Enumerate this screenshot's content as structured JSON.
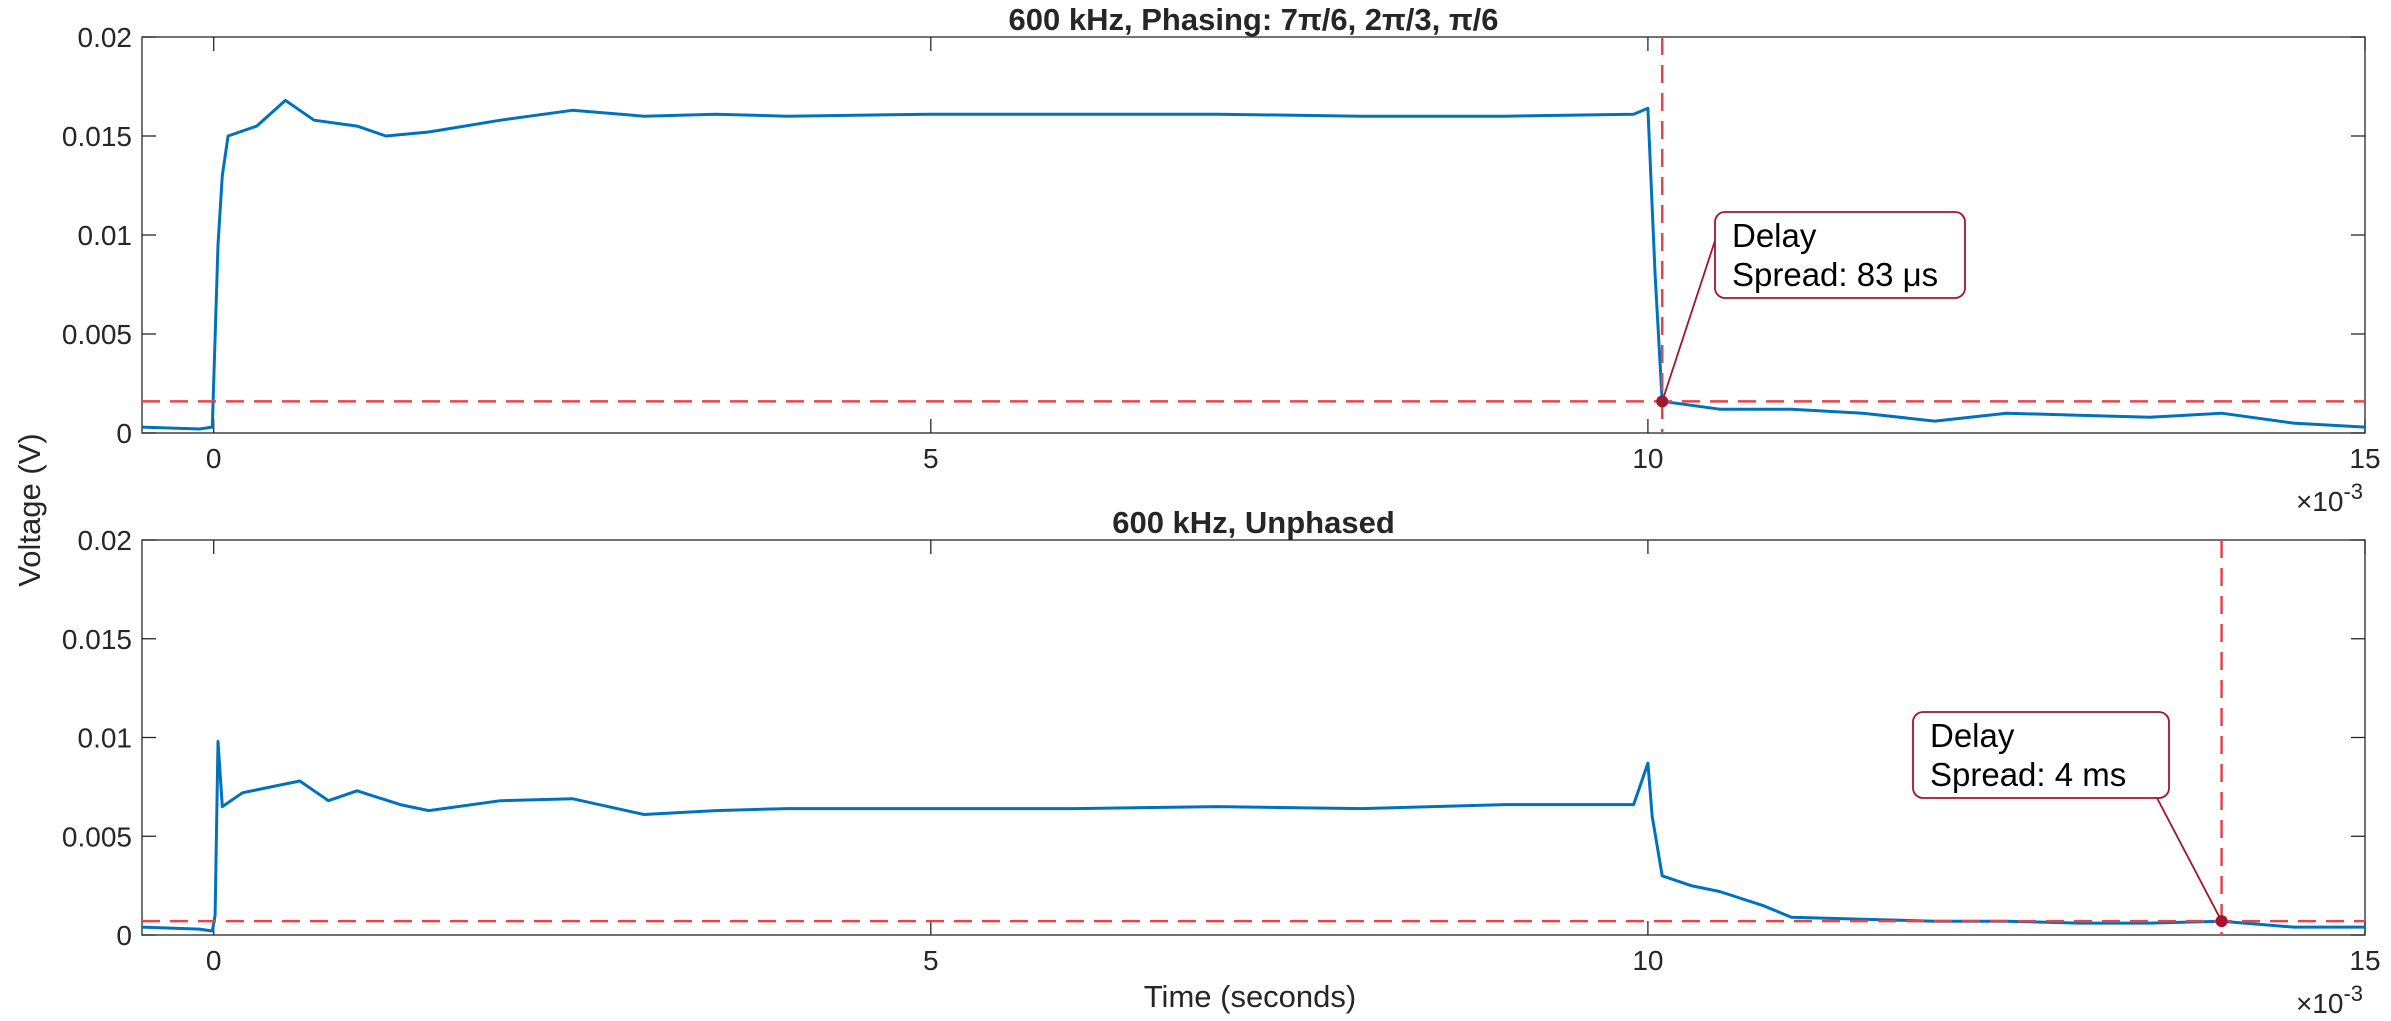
{
  "figure": {
    "ylabel": "Voltage (V)",
    "xlabel": "Time (seconds)",
    "x_multiplier_base": "×10",
    "x_multiplier_exp": "-3"
  },
  "colors": {
    "signal": "#0072BD",
    "threshold": "#E0474C",
    "annotation": "#A2142F",
    "axes": "#262626"
  },
  "chart_data": [
    {
      "type": "line",
      "title": "600 kHz, Phasing: 7π/6, 2π/3, π/6",
      "xlabel": "",
      "ylabel": "Voltage (V)",
      "xlim": [
        -0.0005,
        0.015
      ],
      "ylim": [
        0,
        0.02
      ],
      "x_tick_values": [
        0,
        0.005,
        0.01,
        0.015
      ],
      "x_tick_labels": [
        "0",
        "5",
        "10",
        "15"
      ],
      "y_tick_values": [
        0,
        0.005,
        0.01,
        0.015,
        0.02
      ],
      "y_tick_labels": [
        "0",
        "0.005",
        "0.01",
        "0.015",
        "0.02"
      ],
      "series": [
        {
          "name": "Voltage",
          "x": [
            -0.0005,
            -0.0001,
            -1e-05,
            3e-05,
            6e-05,
            0.0001,
            0.0003,
            0.0005,
            0.0007,
            0.001,
            0.0012,
            0.0015,
            0.002,
            0.0025,
            0.003,
            0.0035,
            0.004,
            0.005,
            0.006,
            0.007,
            0.008,
            0.009,
            0.0099,
            0.01,
            0.01005,
            0.0101,
            0.0105,
            0.011,
            0.0115,
            0.012,
            0.0125,
            0.013,
            0.0135,
            0.014,
            0.0145,
            0.015
          ],
          "values": [
            0.0003,
            0.0002,
            0.0003,
            0.0095,
            0.013,
            0.015,
            0.0155,
            0.0168,
            0.0158,
            0.0155,
            0.015,
            0.0152,
            0.0158,
            0.0163,
            0.016,
            0.0161,
            0.016,
            0.0161,
            0.0161,
            0.0161,
            0.016,
            0.016,
            0.0161,
            0.0164,
            0.008,
            0.0016,
            0.0012,
            0.0012,
            0.001,
            0.0006,
            0.001,
            0.0009,
            0.0008,
            0.001,
            0.0005,
            0.0003
          ]
        }
      ],
      "threshold_y": 0.0016,
      "marker": {
        "x": 0.0101,
        "y": 0.0016
      },
      "annotation": {
        "line1": "Delay",
        "line2": "Spread: 83 μs"
      },
      "x_multiplier": "×10⁻³"
    },
    {
      "type": "line",
      "title": "600 kHz, Unphased",
      "xlabel": "Time (seconds)",
      "ylabel": "Voltage (V)",
      "xlim": [
        -0.0005,
        0.015
      ],
      "ylim": [
        0,
        0.02
      ],
      "x_tick_values": [
        0,
        0.005,
        0.01,
        0.015
      ],
      "x_tick_labels": [
        "0",
        "5",
        "10",
        "15"
      ],
      "y_tick_values": [
        0,
        0.005,
        0.01,
        0.015,
        0.02
      ],
      "y_tick_labels": [
        "0",
        "0.005",
        "0.01",
        "0.015",
        "0.02"
      ],
      "series": [
        {
          "name": "Voltage",
          "x": [
            -0.0005,
            -0.0001,
            -1e-05,
            1e-05,
            3e-05,
            6e-05,
            0.0002,
            0.0004,
            0.0006,
            0.0008,
            0.001,
            0.0013,
            0.0015,
            0.002,
            0.0025,
            0.003,
            0.0035,
            0.004,
            0.005,
            0.006,
            0.007,
            0.008,
            0.009,
            0.0099,
            0.01,
            0.01003,
            0.0101,
            0.0103,
            0.0105,
            0.0108,
            0.011,
            0.0115,
            0.012,
            0.0125,
            0.013,
            0.0135,
            0.014,
            0.0145,
            0.015
          ],
          "values": [
            0.0004,
            0.0003,
            0.0002,
            0.001,
            0.0098,
            0.0065,
            0.0072,
            0.0075,
            0.0078,
            0.0068,
            0.0073,
            0.0066,
            0.0063,
            0.0068,
            0.0069,
            0.0061,
            0.0063,
            0.0064,
            0.0064,
            0.0064,
            0.0065,
            0.0064,
            0.0066,
            0.0066,
            0.0087,
            0.006,
            0.003,
            0.0025,
            0.0022,
            0.0015,
            0.0009,
            0.0008,
            0.0007,
            0.0007,
            0.0006,
            0.0006,
            0.0007,
            0.0004,
            0.0004
          ]
        }
      ],
      "threshold_y": 0.0007,
      "marker": {
        "x": 0.014,
        "y": 0.0007
      },
      "annotation": {
        "line1": "Delay",
        "line2": "Spread: 4 ms"
      },
      "x_multiplier": "×10⁻³"
    }
  ]
}
